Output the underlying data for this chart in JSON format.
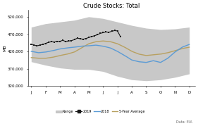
{
  "title": "Crude Stocks: Total",
  "ylabel": "MB",
  "source": "Data: EIA",
  "x_labels": [
    "J",
    "F",
    "M",
    "A",
    "M",
    "J",
    "J",
    "A",
    "S",
    "O",
    "N",
    "D"
  ],
  "x_ticks": [
    0,
    1,
    2,
    3,
    4,
    5,
    6,
    7,
    8,
    9,
    10,
    11
  ],
  "ylim": [
    320000,
    540000
  ],
  "yticks": [
    320000,
    370000,
    420000,
    470000,
    520000
  ],
  "range_upper": [
    490000,
    500000,
    505000,
    510000,
    520000,
    515000,
    505000,
    495000,
    487000,
    483000,
    485000,
    490000
  ],
  "range_lower": [
    390000,
    380000,
    372000,
    368000,
    368000,
    362000,
    348000,
    338000,
    335000,
    338000,
    345000,
    355000
  ],
  "line_2019_x": [
    0.0,
    0.2,
    0.4,
    0.6,
    0.8,
    1.0,
    1.2,
    1.4,
    1.6,
    1.8,
    2.0,
    2.2,
    2.4,
    2.6,
    2.8,
    3.0,
    3.2,
    3.4,
    3.6,
    3.8,
    4.0,
    4.2,
    4.4,
    4.6,
    4.8,
    5.0,
    5.2,
    5.4,
    5.6,
    5.8,
    6.0,
    6.2
  ],
  "line_2019_y": [
    441000,
    438000,
    436000,
    438000,
    440000,
    443000,
    446000,
    448000,
    447000,
    449000,
    449000,
    452000,
    448000,
    450000,
    451000,
    454000,
    458000,
    457000,
    455000,
    457000,
    460000,
    463000,
    465000,
    468000,
    472000,
    474000,
    476000,
    475000,
    478000,
    480000,
    479000,
    463000
  ],
  "line_2018_x": [
    0,
    0.5,
    1,
    1.5,
    2,
    2.5,
    3,
    3.5,
    4,
    4.5,
    5,
    5.5,
    6,
    6.5,
    7,
    7.5,
    8,
    8.5,
    9,
    9.5,
    10,
    10.5,
    11
  ],
  "line_2018_y": [
    420000,
    416000,
    418000,
    422000,
    427000,
    430000,
    432000,
    435000,
    436000,
    438000,
    435000,
    430000,
    420000,
    408000,
    395000,
    390000,
    388000,
    393000,
    388000,
    400000,
    418000,
    432000,
    440000
  ],
  "line_5yr_x": [
    0,
    0.5,
    1,
    1.5,
    2,
    2.5,
    3,
    3.5,
    4,
    4.5,
    5,
    5.5,
    6,
    6.5,
    7,
    7.5,
    8,
    8.5,
    9,
    9.5,
    10,
    10.5,
    11
  ],
  "line_5yr_y": [
    402000,
    400000,
    400000,
    403000,
    408000,
    412000,
    418000,
    430000,
    442000,
    448000,
    450000,
    448000,
    442000,
    432000,
    420000,
    412000,
    408000,
    410000,
    412000,
    416000,
    422000,
    428000,
    432000
  ],
  "color_range": "#c8c8c8",
  "color_2019": "#1a1a1a",
  "color_2018": "#5b9bd5",
  "color_5yr": "#b8a060",
  "bg_color": "#ffffff"
}
